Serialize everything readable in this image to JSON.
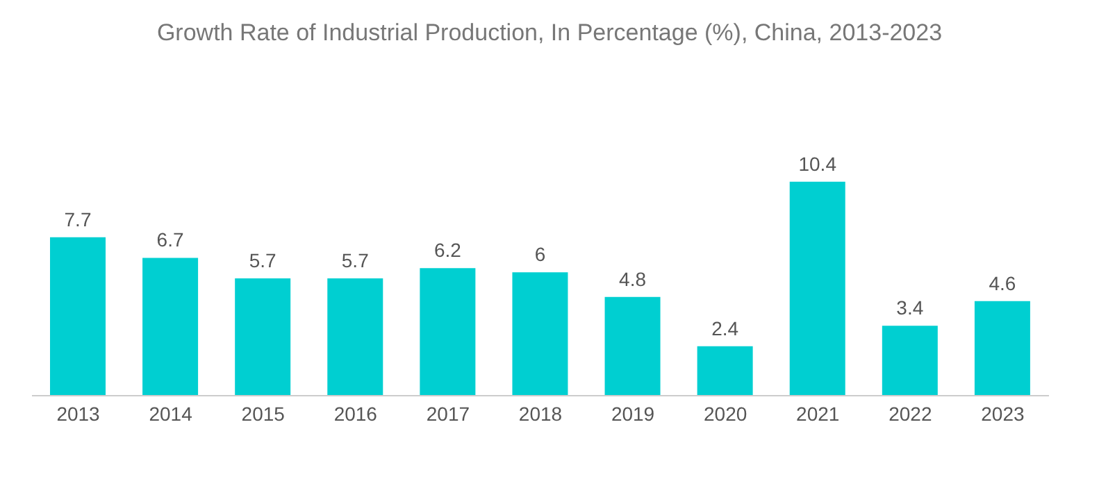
{
  "chart_data": {
    "type": "bar",
    "title": "Growth Rate of Industrial Production, In Percentage (%), China, 2013-2023",
    "categories": [
      "2013",
      "2014",
      "2015",
      "2016",
      "2017",
      "2018",
      "2019",
      "2020",
      "2021",
      "2022",
      "2023"
    ],
    "values": [
      7.7,
      6.7,
      5.7,
      5.7,
      6.2,
      6,
      4.8,
      2.4,
      10.4,
      3.4,
      4.6
    ],
    "color": "#00cfd1",
    "data_labels": true,
    "grid": false,
    "legend": false
  }
}
